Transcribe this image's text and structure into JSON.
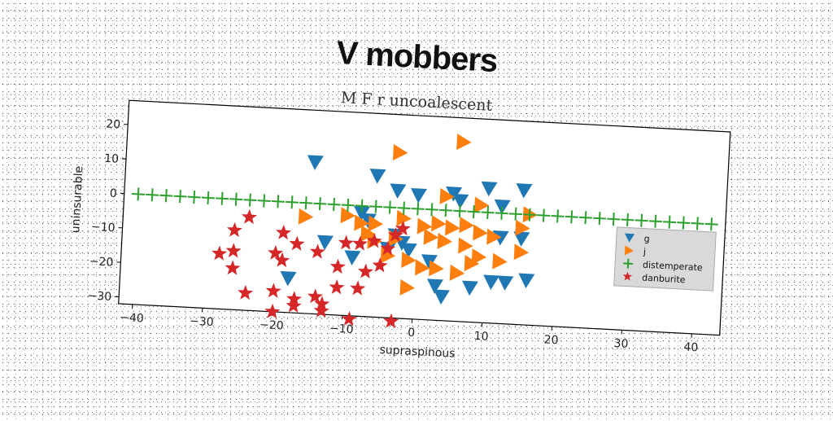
{
  "chart_data": {
    "type": "scatter",
    "title": "V mobbers",
    "subtitle": "M F r uncoalescent",
    "xlabel": "supraspinous",
    "ylabel": "uninsurable",
    "xlim": [
      -42,
      44
    ],
    "ylim": [
      -32,
      27
    ],
    "xticks": [
      -40,
      -30,
      -20,
      -10,
      0,
      10,
      20,
      30,
      40
    ],
    "yticks": [
      20,
      10,
      0,
      -10,
      -20,
      -30
    ],
    "grid": false,
    "legend_position": "right",
    "series": [
      {
        "name": "g",
        "marker": "triangle-down",
        "color": "#1f77b4",
        "points": [
          [
            -15,
            12
          ],
          [
            -6,
            9
          ],
          [
            -3,
            5
          ],
          [
            0,
            4
          ],
          [
            5,
            5
          ],
          [
            6,
            3
          ],
          [
            10,
            7
          ],
          [
            12,
            2
          ],
          [
            15,
            7
          ],
          [
            -8,
            -2
          ],
          [
            -7,
            -4
          ],
          [
            -3,
            -8
          ],
          [
            -4,
            -12
          ],
          [
            -13,
            -11
          ],
          [
            -9,
            -15
          ],
          [
            -2,
            -10
          ],
          [
            -18,
            -22
          ],
          [
            3,
            -22
          ],
          [
            4,
            -25
          ],
          [
            8,
            -22
          ],
          [
            11,
            -20
          ],
          [
            13,
            -20
          ],
          [
            16,
            -19
          ],
          [
            15,
            -7
          ],
          [
            12,
            -7
          ],
          [
            2,
            -15
          ],
          [
            -1,
            -12
          ]
        ]
      },
      {
        "name": "j",
        "marker": "triangle-right",
        "color": "#ff7f0e",
        "points": [
          [
            6,
            20
          ],
          [
            -3,
            16
          ],
          [
            4,
            4
          ],
          [
            9,
            2
          ],
          [
            16,
            0
          ],
          [
            -16,
            -4
          ],
          [
            -10,
            -3
          ],
          [
            -8,
            -5
          ],
          [
            -6,
            -5
          ],
          [
            -2,
            -3
          ],
          [
            1,
            -5
          ],
          [
            3,
            -4
          ],
          [
            5,
            -5
          ],
          [
            7,
            -4
          ],
          [
            9,
            -6
          ],
          [
            15,
            -4
          ],
          [
            -6,
            -10
          ],
          [
            -3,
            -9
          ],
          [
            2,
            -8
          ],
          [
            4,
            -9
          ],
          [
            7,
            -10
          ],
          [
            9,
            -13
          ],
          [
            12,
            -14
          ],
          [
            15,
            -11
          ],
          [
            -4,
            -14
          ],
          [
            -1,
            -15
          ],
          [
            1,
            -17
          ],
          [
            3,
            -17
          ],
          [
            6,
            -18
          ],
          [
            8,
            -15
          ],
          [
            -7,
            -8
          ],
          [
            -1,
            -23
          ],
          [
            11,
            -7
          ]
        ]
      },
      {
        "name": "distemperate",
        "marker": "plus",
        "color": "#2ca02c",
        "points": [
          [
            -40,
            0
          ],
          [
            -38,
            0
          ],
          [
            -36,
            0
          ],
          [
            -34,
            0
          ],
          [
            -32,
            0
          ],
          [
            -30,
            0
          ],
          [
            -28,
            0
          ],
          [
            -26,
            0
          ],
          [
            -24,
            0
          ],
          [
            -22,
            0
          ],
          [
            -20,
            0
          ],
          [
            -18,
            0
          ],
          [
            -16,
            0
          ],
          [
            -14,
            0
          ],
          [
            -12,
            0
          ],
          [
            -10,
            0
          ],
          [
            -8,
            0
          ],
          [
            -6,
            0
          ],
          [
            -4,
            0
          ],
          [
            -2,
            0
          ],
          [
            0,
            0
          ],
          [
            2,
            0
          ],
          [
            4,
            0
          ],
          [
            6,
            0
          ],
          [
            8,
            0
          ],
          [
            10,
            0
          ],
          [
            12,
            0
          ],
          [
            14,
            0
          ],
          [
            16,
            0
          ],
          [
            18,
            0
          ],
          [
            20,
            0
          ],
          [
            22,
            0
          ],
          [
            24,
            0
          ],
          [
            26,
            0
          ],
          [
            28,
            0
          ],
          [
            30,
            0
          ],
          [
            32,
            0
          ],
          [
            34,
            0
          ],
          [
            36,
            0
          ],
          [
            38,
            0
          ],
          [
            40,
            0
          ],
          [
            42,
            0
          ]
        ]
      },
      {
        "name": "danburite",
        "marker": "star",
        "color": "#d62728",
        "points": [
          [
            -24,
            -5
          ],
          [
            -26,
            -9
          ],
          [
            -19,
            -9
          ],
          [
            -17,
            -12
          ],
          [
            -14,
            -14
          ],
          [
            -10,
            -11
          ],
          [
            -8,
            -11
          ],
          [
            -6,
            -10
          ],
          [
            -4,
            -12
          ],
          [
            -3,
            -8
          ],
          [
            -2,
            -6
          ],
          [
            -26,
            -15
          ],
          [
            -20,
            -15
          ],
          [
            -19,
            -17
          ],
          [
            -11,
            -18
          ],
          [
            -7,
            -19
          ],
          [
            -5,
            -17
          ],
          [
            -28,
            -16
          ],
          [
            -26,
            -20
          ],
          [
            -24,
            -27
          ],
          [
            -20,
            -26
          ],
          [
            -17,
            -28
          ],
          [
            -14,
            -27
          ],
          [
            -13,
            -29
          ],
          [
            -11,
            -24
          ],
          [
            -8,
            -24
          ],
          [
            -20,
            -32
          ],
          [
            -17,
            -30
          ],
          [
            -13,
            -31
          ],
          [
            -9,
            -33
          ],
          [
            -3,
            -33
          ]
        ]
      }
    ]
  }
}
